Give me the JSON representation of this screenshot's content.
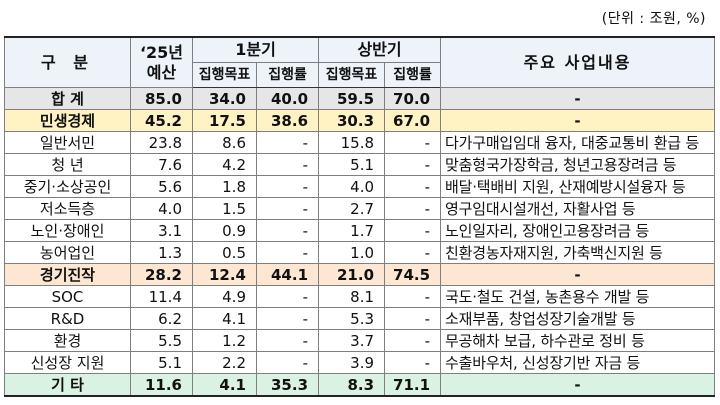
{
  "unit_note": "(단위 : 조원, %)",
  "header": {
    "category": "구 분",
    "budget_line1": "‘25년",
    "budget_line2": "예산",
    "q1": "1분기",
    "half": "상반기",
    "target": "집행목표",
    "rate": "집행률",
    "desc": "주요 사업내용"
  },
  "rows": [
    {
      "kind": "total",
      "name": "합  계",
      "budget": "85.0",
      "q1_target": "34.0",
      "q1_rate": "40.0",
      "h1_target": "59.5",
      "h1_rate": "70.0",
      "desc": "-"
    },
    {
      "kind": "grp-civ",
      "name": "민생경제",
      "budget": "45.2",
      "q1_target": "17.5",
      "q1_rate": "38.6",
      "h1_target": "30.3",
      "h1_rate": "67.0",
      "desc": "-"
    },
    {
      "kind": "item",
      "name": "일반서민",
      "budget": "23.8",
      "q1_target": "8.6",
      "q1_rate": "-",
      "h1_target": "15.8",
      "h1_rate": "-",
      "desc": "다가구매입임대 융자, 대중교통비 환급 등"
    },
    {
      "kind": "item",
      "name": "청  년",
      "budget": "7.6",
      "q1_target": "4.2",
      "q1_rate": "-",
      "h1_target": "5.1",
      "h1_rate": "-",
      "desc": "맞춤형국가장학금, 청년고용장려금 등"
    },
    {
      "kind": "item",
      "name": "중기·소상공인",
      "budget": "5.6",
      "q1_target": "1.8",
      "q1_rate": "-",
      "h1_target": "4.0",
      "h1_rate": "-",
      "desc": "배달·택배비 지원, 산재예방시설융자 등"
    },
    {
      "kind": "item",
      "name": "저소득층",
      "budget": "4.0",
      "q1_target": "1.5",
      "q1_rate": "-",
      "h1_target": "2.7",
      "h1_rate": "-",
      "desc": "영구임대시설개선, 자활사업 등"
    },
    {
      "kind": "item",
      "name": "노인·장애인",
      "budget": "3.1",
      "q1_target": "0.9",
      "q1_rate": "-",
      "h1_target": "1.7",
      "h1_rate": "-",
      "desc": "노인일자리, 장애인고용장려금 등"
    },
    {
      "kind": "item",
      "name": "농어업인",
      "budget": "1.3",
      "q1_target": "0.5",
      "q1_rate": "-",
      "h1_target": "1.0",
      "h1_rate": "-",
      "desc": "친환경농자재지원, 가축백신지원 등"
    },
    {
      "kind": "grp-eco",
      "name": "경기진작",
      "budget": "28.2",
      "q1_target": "12.4",
      "q1_rate": "44.1",
      "h1_target": "21.0",
      "h1_rate": "74.5",
      "desc": "-"
    },
    {
      "kind": "item",
      "name": "SOC",
      "budget": "11.4",
      "q1_target": "4.9",
      "q1_rate": "-",
      "h1_target": "8.1",
      "h1_rate": "-",
      "desc": "국도·철도 건설, 농촌용수 개발 등"
    },
    {
      "kind": "item",
      "name": "R&D",
      "budget": "6.2",
      "q1_target": "4.1",
      "q1_rate": "-",
      "h1_target": "5.3",
      "h1_rate": "-",
      "desc": "소재부품, 창업성장기술개발 등"
    },
    {
      "kind": "item",
      "name": "환경",
      "budget": "5.5",
      "q1_target": "1.2",
      "q1_rate": "-",
      "h1_target": "3.7",
      "h1_rate": "-",
      "desc": "무공해차 보급, 하수관로 정비 등"
    },
    {
      "kind": "item",
      "name": "신성장 지원",
      "budget": "5.1",
      "q1_target": "2.2",
      "q1_rate": "-",
      "h1_target": "3.9",
      "h1_rate": "-",
      "desc": "수출바우처, 신성장기반 자금 등"
    },
    {
      "kind": "grp-etc",
      "name": "기  타",
      "budget": "11.6",
      "q1_target": "4.1",
      "q1_rate": "35.3",
      "h1_target": "8.3",
      "h1_rate": "71.1",
      "desc": "-"
    }
  ]
}
